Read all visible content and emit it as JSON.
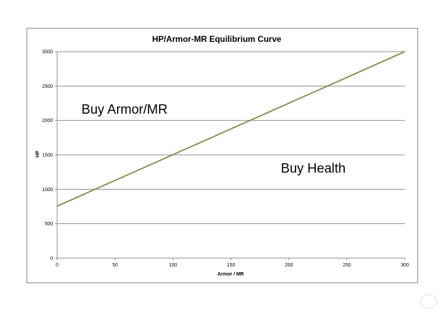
{
  "chart_data": {
    "type": "line",
    "title": "HP/Armor-MR Equilibrium Curve",
    "xlabel": "Armor / MR",
    "ylabel": "HP",
    "xlim": [
      0,
      300
    ],
    "ylim": [
      0,
      3000
    ],
    "x_ticks": [
      0,
      50,
      100,
      150,
      200,
      250,
      300
    ],
    "y_ticks": [
      0,
      500,
      1000,
      1500,
      2000,
      2500,
      3000
    ],
    "grid": "horizontal",
    "series": [
      {
        "x": [
          0,
          300
        ],
        "y": [
          755,
          3000
        ],
        "color": "#77933c"
      }
    ],
    "annotations": [
      {
        "text": "Buy Armor/MR",
        "x": 21,
        "y": 2100
      },
      {
        "text": "Buy Health",
        "x": 193,
        "y": 1240
      }
    ]
  }
}
